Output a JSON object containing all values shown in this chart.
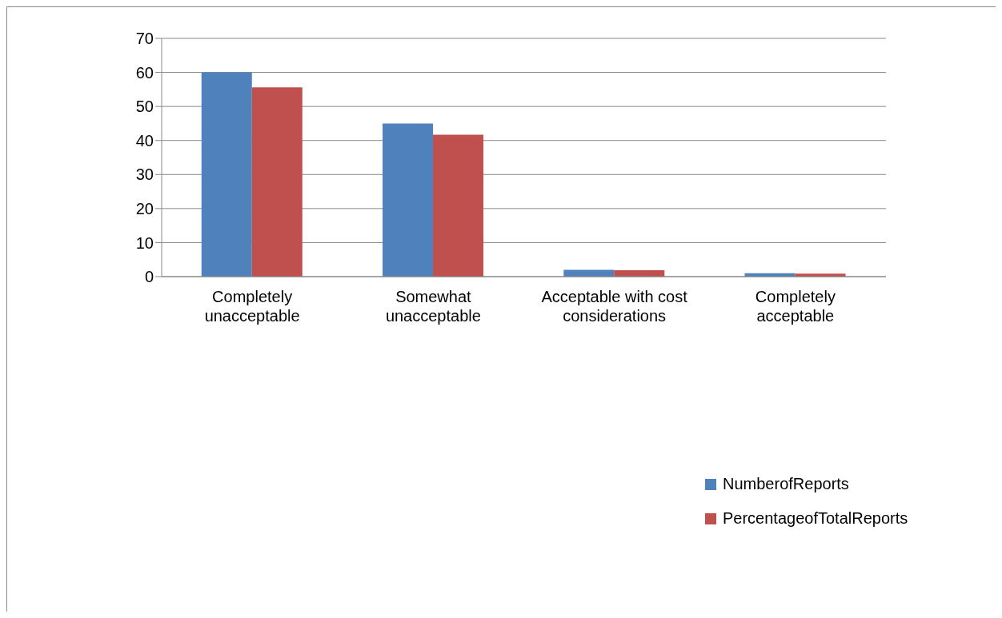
{
  "chart_data": {
    "type": "bar",
    "categories": [
      "Completely unacceptable",
      "Somewhat unacceptable",
      "Acceptable with cost considerations",
      "Completely acceptable"
    ],
    "series": [
      {
        "name": "NumberofReports",
        "color": "#4f81bd",
        "values": [
          60,
          45,
          2,
          1
        ]
      },
      {
        "name": "PercentageofTotalReports",
        "color": "#c0504d",
        "values": [
          55.6,
          41.7,
          1.9,
          0.9
        ]
      }
    ],
    "ylim": [
      0,
      70
    ],
    "yticks": [
      0,
      10,
      20,
      30,
      40,
      50,
      60,
      70
    ],
    "grid": "y",
    "legend": "bottom right"
  }
}
